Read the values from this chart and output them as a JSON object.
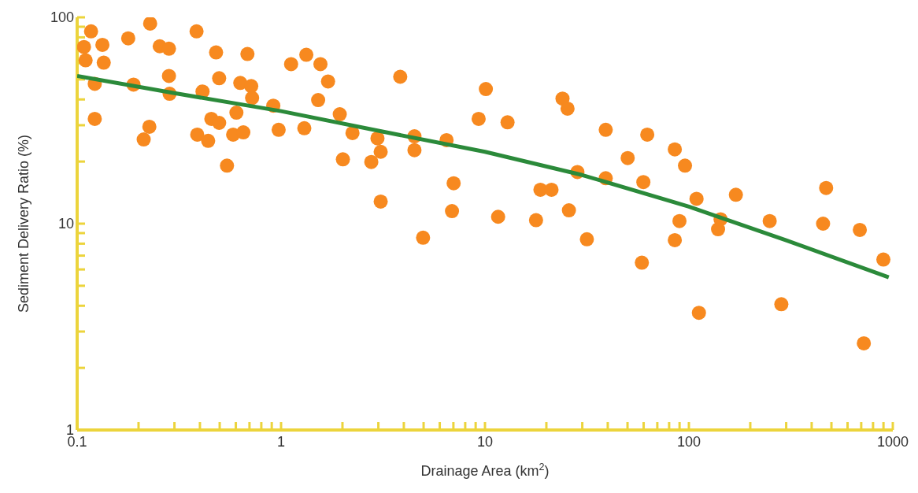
{
  "chart_data": {
    "type": "scatter",
    "xlabel": "Drainage Area (km$^{2}$)",
    "ylabel": "Sediment Delivery Ratio (%)",
    "log": "xy",
    "marker": "circle",
    "xlim": [
      0.1,
      1000
    ],
    "ylim": [
      1,
      100
    ],
    "xticks": [
      0.1,
      {
        "value": 0.2,
        "label": null
      },
      {
        "value": 0.3,
        "label": null
      },
      {
        "value": 0.4,
        "label": null
      },
      {
        "value": 0.5,
        "label": null
      },
      {
        "value": 0.6,
        "label": null
      },
      {
        "value": 0.7,
        "label": null
      },
      {
        "value": 0.8,
        "label": null
      },
      {
        "value": 0.9,
        "label": null
      },
      1,
      {
        "value": 2,
        "label": null
      },
      {
        "value": 3,
        "label": null
      },
      {
        "value": 4,
        "label": null
      },
      {
        "value": 5,
        "label": null
      },
      {
        "value": 6,
        "label": null
      },
      {
        "value": 7,
        "label": null
      },
      {
        "value": 8,
        "label": null
      },
      {
        "value": 9,
        "label": null
      },
      10,
      {
        "value": 20,
        "label": null
      },
      {
        "value": 30,
        "label": null
      },
      {
        "value": 40,
        "label": null
      },
      {
        "value": 50,
        "label": null
      },
      {
        "value": 60,
        "label": null
      },
      {
        "value": 70,
        "label": null
      },
      {
        "value": 80,
        "label": null
      },
      {
        "value": 90,
        "label": null
      },
      100,
      {
        "value": 200,
        "label": null
      },
      {
        "value": 300,
        "label": null
      },
      {
        "value": 400,
        "label": null
      },
      {
        "value": 500,
        "label": null
      },
      {
        "value": 600,
        "label": null
      },
      {
        "value": 700,
        "label": null
      },
      {
        "value": 800,
        "label": null
      },
      {
        "value": 900,
        "label": null
      },
      1000
    ],
    "yticks": [
      1,
      {
        "value": 2,
        "label": null
      },
      {
        "value": 3,
        "label": null
      },
      {
        "value": 4,
        "label": null
      },
      {
        "value": 5,
        "label": null
      },
      {
        "value": 6,
        "label": null
      },
      {
        "value": 7,
        "label": null
      },
      {
        "value": 8,
        "label": null
      },
      {
        "value": 9,
        "label": null
      },
      10,
      {
        "value": 20,
        "label": null
      },
      {
        "value": 30,
        "label": null
      },
      {
        "value": 40,
        "label": null
      },
      {
        "value": 50,
        "label": null
      },
      {
        "value": 60,
        "label": null
      },
      {
        "value": 70,
        "label": null
      },
      {
        "value": 80,
        "label": null
      },
      {
        "value": 90,
        "label": null
      },
      100
    ],
    "series": [
      {
        "color": "#f7891f",
        "x": [
          0.108,
          0.11,
          0.117,
          0.122,
          0.122,
          0.133,
          0.135,
          0.178,
          0.189,
          0.212,
          0.228,
          0.226,
          0.254,
          0.282,
          0.282,
          0.284,
          0.385,
          0.412,
          0.388,
          0.439,
          0.455,
          0.48,
          0.497,
          0.497,
          0.543,
          0.582,
          0.604,
          0.631,
          0.653,
          0.684,
          0.714,
          0.721,
          0.916,
          0.973,
          1.12,
          1.3,
          1.33,
          1.56,
          1.52,
          1.7,
          1.94,
          2.01,
          2.24,
          2.77,
          2.97,
          3.08,
          3.08,
          3.84,
          4.51,
          4.51,
          4.97,
          6.48,
          7.02,
          6.89,
          10.1,
          9.31,
          12.9,
          11.6,
          17.8,
          18.7,
          21.2,
          24,
          25.4,
          25.8,
          28.4,
          31.6,
          39.1,
          39.1,
          50.1,
          59.8,
          62.5,
          58.8,
          85.3,
          85.3,
          89.9,
          95.7,
          109,
          112,
          139,
          143,
          170,
          249,
          284,
          471,
          455,
          689,
          721,
          899
        ],
        "values": [
          71.8,
          61.9,
          85.5,
          47.6,
          32.2,
          73.6,
          60.3,
          79.1,
          47.2,
          25.6,
          93.3,
          29.5,
          72.4,
          70.5,
          52,
          42.6,
          85.5,
          43.7,
          27,
          25.2,
          32.2,
          67.6,
          50.7,
          30.8,
          19.1,
          27,
          34.5,
          48.1,
          27.7,
          66.4,
          46.4,
          40.7,
          37.3,
          28.5,
          59.3,
          29,
          65.8,
          59.3,
          39.7,
          48.9,
          33.9,
          20.5,
          27.5,
          19.9,
          25.9,
          22.3,
          12.8,
          51.5,
          26.5,
          22.7,
          8.55,
          25.4,
          15.7,
          11.5,
          44.9,
          32.2,
          31,
          10.8,
          10.4,
          14.6,
          14.6,
          40.4,
          36.1,
          11.6,
          17.8,
          8.4,
          28.5,
          16.6,
          20.8,
          15.9,
          27,
          6.47,
          22.9,
          8.32,
          10.3,
          19.1,
          13.2,
          3.7,
          9.4,
          10.5,
          13.8,
          10.3,
          4.07,
          14.9,
          10,
          9.33,
          2.63,
          6.7
        ]
      },
      {
        "type": "line",
        "color": "#2b8a3a",
        "marker": "none",
        "x": [
          0.1,
          0.3,
          1,
          3,
          10,
          30,
          100,
          300,
          955
        ],
        "values": [
          52,
          42.9,
          35.1,
          28.2,
          22.3,
          17.2,
          12.1,
          8.3,
          5.5
        ]
      }
    ]
  }
}
